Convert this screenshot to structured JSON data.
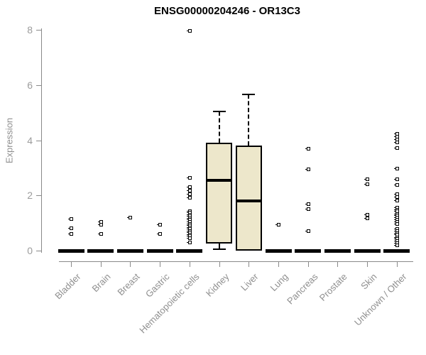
{
  "chart_data": {
    "type": "boxplot",
    "title": "ENSG00000204246 - OR13C3",
    "ylabel": "Expression",
    "xlabel": "",
    "ylim": [
      0,
      8
    ],
    "yticks": [
      0,
      2,
      4,
      6,
      8
    ],
    "grid": false,
    "legend": null,
    "categories": [
      "Bladder",
      "Brain",
      "Breast",
      "Gastric",
      "Hematopoietic cells",
      "Kidney",
      "Liver",
      "Lung",
      "Pancreas",
      "Prostate",
      "Skin",
      "Unknown / Other"
    ],
    "series": [
      {
        "category": "Bladder",
        "q1": 0,
        "median": 0,
        "q3": 0,
        "whisker_low": 0,
        "whisker_high": 0,
        "outliers": [
          1.15,
          0.82,
          0.63
        ]
      },
      {
        "category": "Brain",
        "q1": 0,
        "median": 0,
        "q3": 0,
        "whisker_low": 0,
        "whisker_high": 0,
        "outliers": [
          1.05,
          0.95,
          0.63
        ]
      },
      {
        "category": "Breast",
        "q1": 0,
        "median": 0,
        "q3": 0,
        "whisker_low": 0,
        "whisker_high": 0,
        "outliers": [
          1.2
        ]
      },
      {
        "category": "Gastric",
        "q1": 0,
        "median": 0,
        "q3": 0,
        "whisker_low": 0,
        "whisker_high": 0,
        "outliers": [
          0.95,
          0.62
        ]
      },
      {
        "category": "Hematopoietic cells",
        "q1": 0,
        "median": 0,
        "q3": 0,
        "whisker_low": 0,
        "whisker_high": 0,
        "outliers": [
          7.98,
          2.65,
          2.31,
          2.18,
          2.05,
          1.93,
          1.45,
          1.38,
          1.32,
          1.25,
          1.19,
          1.12,
          1.06,
          0.99,
          0.92,
          0.86,
          0.79,
          0.73,
          0.66,
          0.59,
          0.53,
          0.46,
          0.3
        ]
      },
      {
        "category": "Kidney",
        "q1": 0.25,
        "median": 2.55,
        "q3": 3.9,
        "whisker_low": 0.05,
        "whisker_high": 5.05,
        "outliers": []
      },
      {
        "category": "Liver",
        "q1": 0,
        "median": 1.8,
        "q3": 3.8,
        "whisker_low": 0,
        "whisker_high": 5.65,
        "outliers": []
      },
      {
        "category": "Lung",
        "q1": 0,
        "median": 0,
        "q3": 0,
        "whisker_low": 0,
        "whisker_high": 0,
        "outliers": [
          0.95
        ]
      },
      {
        "category": "Pancreas",
        "q1": 0,
        "median": 0,
        "q3": 0,
        "whisker_low": 0,
        "whisker_high": 0,
        "outliers": [
          3.7,
          2.95,
          1.7,
          1.52,
          0.72
        ]
      },
      {
        "category": "Prostate",
        "q1": 0,
        "median": 0,
        "q3": 0,
        "whisker_low": 0,
        "whisker_high": 0,
        "outliers": []
      },
      {
        "category": "Skin",
        "q1": 0,
        "median": 0,
        "q3": 0,
        "whisker_low": 0,
        "whisker_high": 0,
        "outliers": [
          2.6,
          2.41,
          1.32,
          1.18
        ]
      },
      {
        "category": "Unknown / Other",
        "q1": 0,
        "median": 0,
        "q3": 0,
        "whisker_low": 0,
        "whisker_high": 0,
        "outliers": [
          4.24,
          4.14,
          4.04,
          3.93,
          3.72,
          2.99,
          2.6,
          2.39,
          2.05,
          1.95,
          1.83,
          1.58,
          1.5,
          1.43,
          1.35,
          1.28,
          1.2,
          1.13,
          1.05,
          0.98,
          0.8,
          0.73,
          0.65,
          0.58,
          0.5,
          0.43,
          0.35,
          0.28,
          0.21
        ]
      }
    ]
  },
  "colors": {
    "box_fill": "#EDE7CB",
    "box_border": "#000000",
    "median": "#000000",
    "zero_bar": "#000000",
    "axis_line": "#8a8a8a",
    "tick_label": "#9c9c9c",
    "title": "#000000",
    "background": "#ffffff"
  }
}
